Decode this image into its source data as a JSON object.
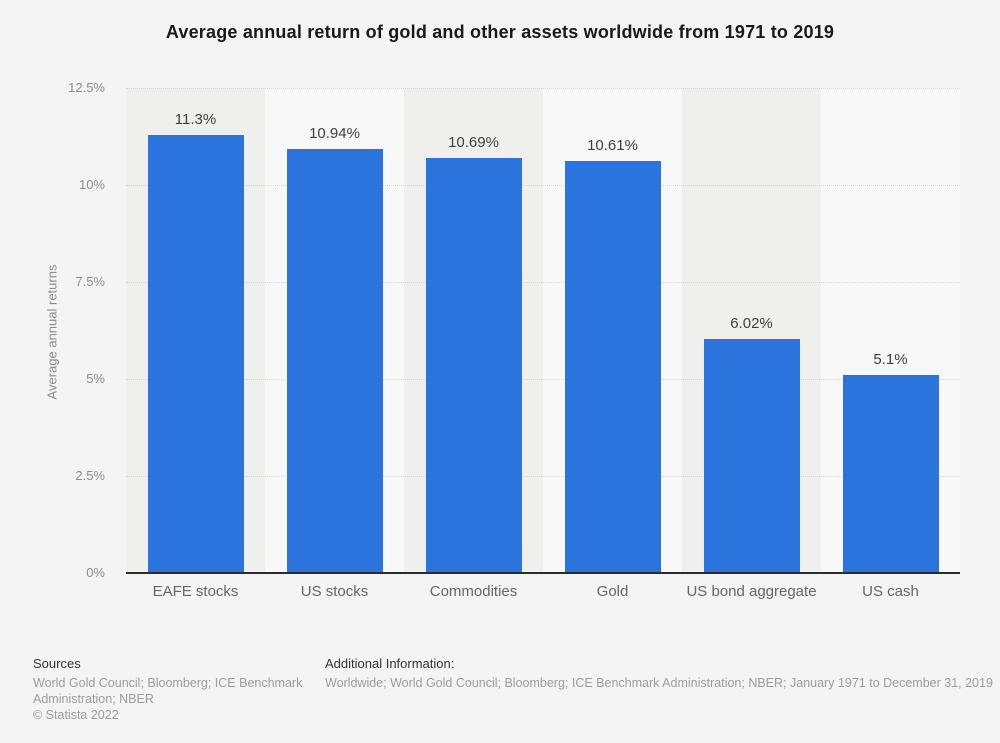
{
  "chart_data": {
    "type": "bar",
    "title": "Average annual return of gold and other assets worldwide from 1971 to 2019",
    "categories": [
      "EAFE stocks",
      "US stocks",
      "Commodities",
      "Gold",
      "US bond aggregate",
      "US cash"
    ],
    "values": [
      11.3,
      10.94,
      10.69,
      10.61,
      6.02,
      5.1
    ],
    "value_labels": [
      "11.3%",
      "10.94%",
      "10.69%",
      "10.61%",
      "6.02%",
      "5.1%"
    ],
    "xlabel": "",
    "ylabel": "Average annual returns",
    "ylim": [
      0,
      12.5
    ],
    "yticks": [
      0,
      2.5,
      5,
      7.5,
      10,
      12.5
    ],
    "ytick_labels": [
      "0%",
      "2.5%",
      "5%",
      "7.5%",
      "10%",
      "12.5%"
    ],
    "grid": "horizontal-dotted",
    "legend": "none",
    "bar_color": "#2b73dd",
    "band_colors": [
      "#efefee",
      "#f9f8f8"
    ]
  },
  "footer": {
    "sources_heading": "Sources",
    "sources_text": "World Gold Council; Bloomberg; ICE Benchmark Administration; NBER",
    "copyright": "© Statista 2022",
    "additional_heading": "Additional Information:",
    "additional_text": "Worldwide; World Gold Council; Bloomberg; ICE Benchmark Administration; NBER; January 1971 to December 31, 2019"
  }
}
